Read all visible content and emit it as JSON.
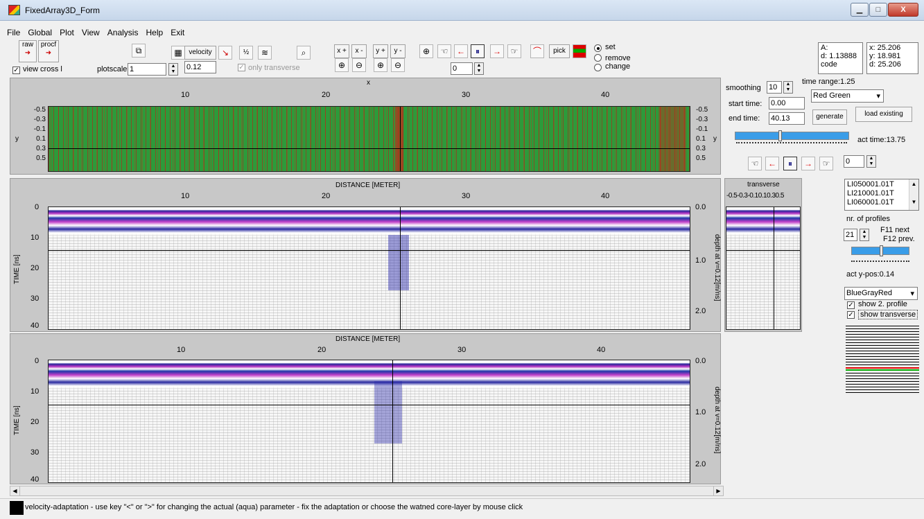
{
  "window": {
    "title": "FixedArray3D_Form",
    "min": "▁",
    "max": "□",
    "close": "X"
  },
  "menu": [
    "File",
    "Global",
    "Plot",
    "View",
    "Analysis",
    "Help",
    "Exit"
  ],
  "toolbar": {
    "raw": "raw",
    "procf": "procf",
    "view_cross": "view cross l",
    "plotscale_label": "plotscale",
    "plotscale_value": "1",
    "velocity": "velocity",
    "velocity_value": "0.12",
    "only_transverse": "only transverse",
    "x_plus": "x +",
    "x_minus": "x -",
    "y_plus": "y +",
    "y_minus": "y -",
    "frame_value": "0",
    "pick": "pick",
    "radio_set": "set",
    "radio_remove": "remove",
    "radio_change": "change"
  },
  "info": {
    "a": "A:",
    "d": "d: 1.13888",
    "code": "code",
    "x": "x: 25.206",
    "y": "y: 18.981",
    "d2": "d: 25.206"
  },
  "top_plot": {
    "xlabel": "x",
    "ylabel": "y",
    "yright": "y",
    "xticks": [
      "10",
      "20",
      "30",
      "40"
    ],
    "yticks": [
      "-0.5",
      "-0.3",
      "-0.1",
      "0.1",
      "0.3",
      "0.5"
    ]
  },
  "right_controls": {
    "smoothing_label": "smoothing",
    "smoothing_value": "10",
    "time_range": "time range:1.25",
    "start_label": "start time:",
    "start_value": "0.00",
    "end_label": "end time:",
    "end_value": "40.13",
    "color_scheme": "Red Green",
    "generate": "generate",
    "load_existing": "load existing",
    "act_time": "act time:13.75",
    "frame_value": "0"
  },
  "profile1": {
    "title": "DISTANCE [METER]",
    "ylabel": "TIME [ns]",
    "rlabel": "depth at v=0.12[m/ns]",
    "xticks": [
      "10",
      "20",
      "30",
      "40"
    ],
    "yticks": [
      "0",
      "10",
      "20",
      "30",
      "40"
    ],
    "dticks": [
      "0.0",
      "1.0",
      "2.0"
    ]
  },
  "profile2": {
    "title": "DISTANCE [METER]",
    "ylabel": "TIME [ns]",
    "rlabel": "depth at v=0.12[m/ns]",
    "xticks": [
      "10",
      "20",
      "30",
      "40"
    ],
    "yticks": [
      "0",
      "10",
      "20",
      "30",
      "40"
    ],
    "dticks": [
      "0.0",
      "1.0",
      "2.0"
    ]
  },
  "transverse": {
    "title": "transverse",
    "ticks": [
      "-0.5",
      "-0.3",
      "-0.1",
      "0.1",
      "0.3",
      "0.5"
    ]
  },
  "side": {
    "files": [
      "LI050001.01T",
      "LI210001.01T",
      "LI060001.01T"
    ],
    "nr_profiles_label": "nr. of profiles",
    "nr_profiles_value": "21",
    "f11": "F11 next",
    "f12": "F12 prev.",
    "act_ypos": "act y-pos:0.14",
    "colormap": "BlueGrayRed",
    "show2": "show 2. profile",
    "show_transverse": "show transverse"
  },
  "status": {
    "text": "velocity-adaptation - use key \"<\" or \">\" for changing the actual (aqua) parameter - fix the adaptation or choose the watned core-layer by mouse click"
  }
}
